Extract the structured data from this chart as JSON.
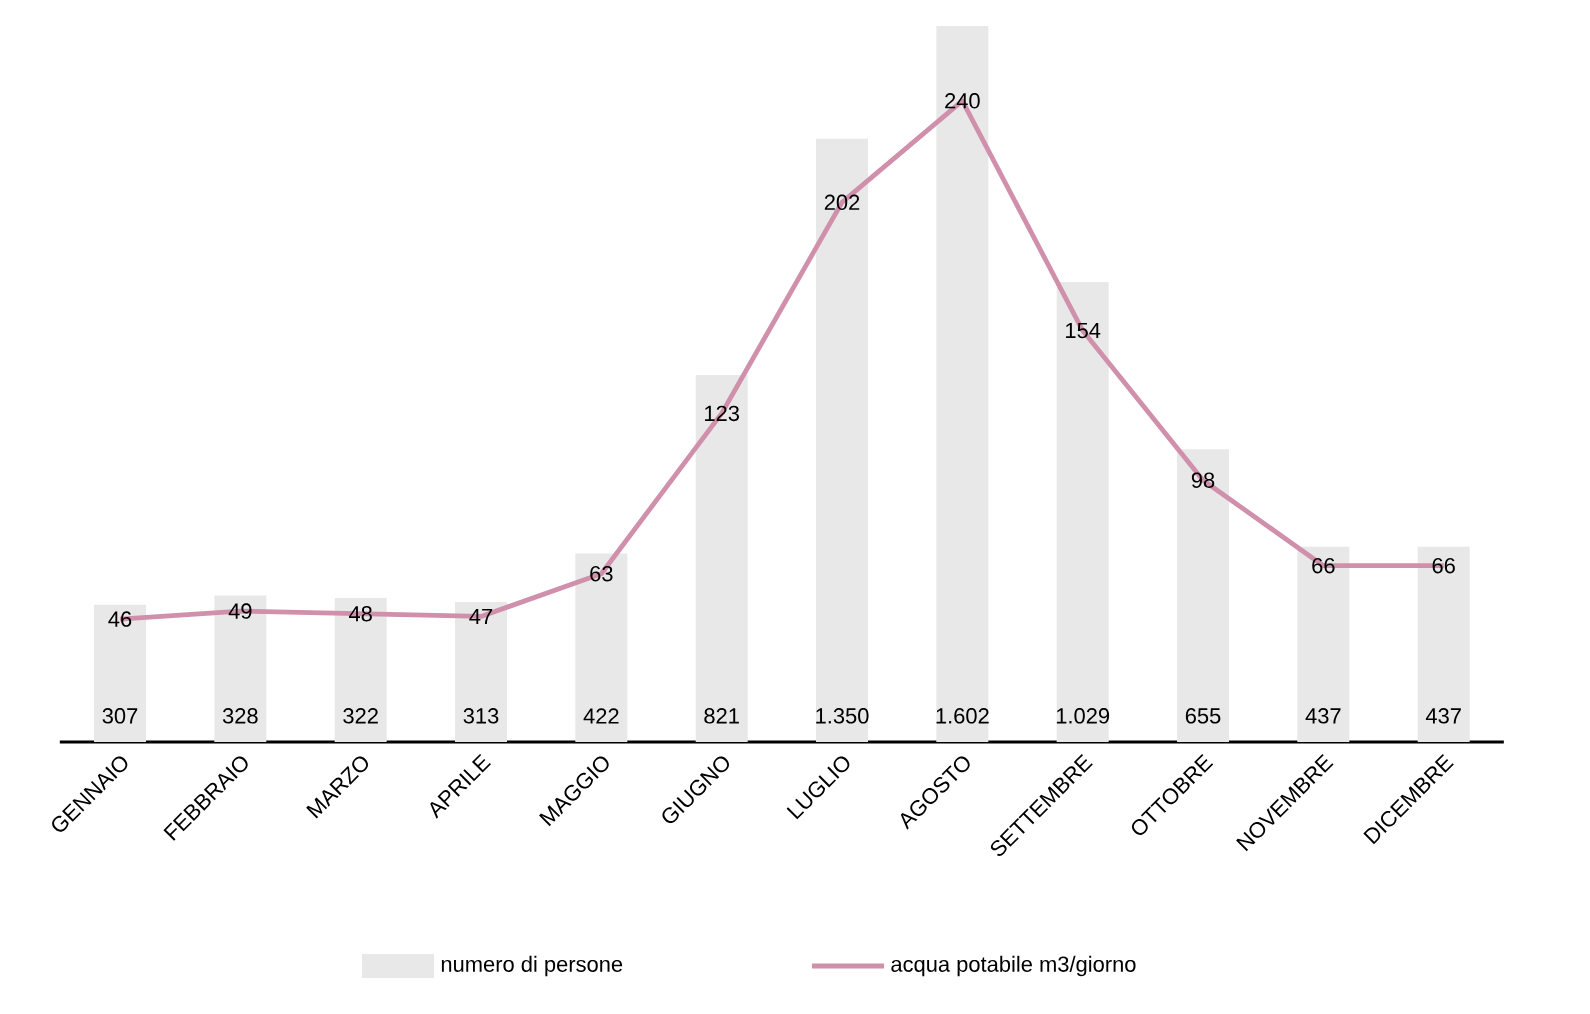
{
  "chart_data": {
    "type": "bar",
    "categories": [
      "GENNAIO",
      "FEBBRAIO",
      "MARZO",
      "APRILE",
      "MAGGIO",
      "GIUGNO",
      "LUGLIO",
      "AGOSTO",
      "SETTEMBRE",
      "OTTOBRE",
      "NOVEMBRE",
      "DICEMBRE"
    ],
    "series": [
      {
        "name": "numero di persone",
        "color": "#e8e8e8",
        "values": [
          307,
          328,
          322,
          313,
          422,
          821,
          1350,
          1602,
          1029,
          655,
          437,
          437
        ],
        "value_labels": [
          "307",
          "328",
          "322",
          "313",
          "422",
          "821",
          "1.350",
          "1.602",
          "1.029",
          "655",
          "437",
          "437"
        ]
      },
      {
        "name": "acqua potabile m3/giorno",
        "type": "line",
        "axis": "y2",
        "color": "#d08fab",
        "values": [
          46,
          49,
          48,
          47,
          63,
          123,
          202,
          240,
          154,
          98,
          66,
          66
        ]
      }
    ],
    "ylim": [
      0,
      1602
    ],
    "y2lim": [
      0,
      268
    ],
    "data_labels": true,
    "tick_labels": "x",
    "legend": "bottom",
    "marker": "none",
    "line_style": "solid"
  }
}
